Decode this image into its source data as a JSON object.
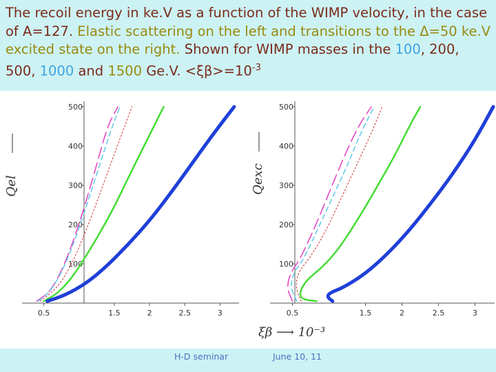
{
  "header": {
    "title_parts": [
      {
        "text": "The recoil energy in ke.V as a function of the WIMP velocity, in the case of A=127. ",
        "cls": ""
      },
      {
        "text": "Elastic scattering on the left and transitions to the",
        "cls": "c-olive"
      },
      {
        "text": " Δ=50 ke.V excited state on the right. ",
        "cls": "c-olive"
      },
      {
        "text": "Shown for  WIMP masses in the ",
        "cls": ""
      },
      {
        "text": "100",
        "cls": "c-lightblue"
      },
      {
        "text": ", 200, 500, ",
        "cls": ""
      },
      {
        "text": "1000",
        "cls": "c-blue2"
      },
      {
        "text": " and ",
        "cls": ""
      },
      {
        "text": "1500",
        "cls": "c-olive"
      },
      {
        "text": " Ge.V. <ξβ>=10",
        "cls": ""
      },
      {
        "text": "-3",
        "cls": "sup"
      }
    ]
  },
  "footer": {
    "left": "H-D seminar",
    "right": "June 10, 11"
  },
  "chart_data": [
    {
      "type": "line",
      "title": "Elastic scattering",
      "ylabel": "Q_{el}",
      "xlabel": "",
      "xlim": [
        0.25,
        3.25
      ],
      "ylim": [
        0,
        500
      ],
      "x_ticks": [
        "0.5",
        "1.5",
        "2",
        "2.5",
        "3"
      ],
      "x_tick_values": [
        0.5,
        1.5,
        2,
        2.5,
        3
      ],
      "y_ticks": [
        "100",
        "200",
        "300",
        "400",
        "500"
      ],
      "y_tick_values": [
        100,
        200,
        300,
        400,
        500
      ],
      "series": [
        {
          "name": "100 GeV",
          "color": "#e040c0",
          "style": "longdash",
          "width": 1.5,
          "xs": [
            0.4,
            0.6,
            0.8,
            1.0,
            1.2,
            1.4,
            1.55
          ],
          "ys": [
            5,
            30,
            100,
            200,
            320,
            450,
            500
          ]
        },
        {
          "name": "200 GeV",
          "color": "#5fc8e8",
          "style": "dash",
          "width": 1.5,
          "xs": [
            0.42,
            0.6,
            0.8,
            1.0,
            1.2,
            1.45,
            1.58
          ],
          "ys": [
            5,
            30,
            95,
            190,
            300,
            440,
            500
          ]
        },
        {
          "name": "500 GeV",
          "color": "#d03030",
          "style": "dot",
          "width": 1,
          "xs": [
            0.45,
            0.7,
            0.9,
            1.1,
            1.3,
            1.5,
            1.75
          ],
          "ys": [
            5,
            40,
            100,
            185,
            280,
            380,
            500
          ]
        },
        {
          "name": "1000 GeV",
          "color": "#44dd33",
          "style": "solid",
          "width": 2.5,
          "xs": [
            0.5,
            0.7,
            0.9,
            1.1,
            1.3,
            1.5,
            1.7,
            1.95,
            2.2
          ],
          "ys": [
            5,
            25,
            65,
            120,
            180,
            245,
            320,
            410,
            500
          ]
        },
        {
          "name": "1500 GeV",
          "color": "#1f3fd8",
          "style": "solid",
          "width": 5,
          "xs": [
            0.55,
            0.8,
            1.1,
            1.4,
            1.7,
            2.0,
            2.3,
            2.6,
            2.9,
            3.2
          ],
          "ys": [
            5,
            20,
            50,
            95,
            150,
            210,
            280,
            355,
            430,
            500
          ]
        }
      ]
    },
    {
      "type": "line",
      "title": "Transitions to the 50 keV excited state",
      "ylabel": "Q_{exc}",
      "xlabel": "ξβ ⟶ 10⁻³",
      "xlim": [
        0.25,
        3.25
      ],
      "ylim": [
        0,
        500
      ],
      "x_ticks": [
        "0.5",
        "1.5",
        "2",
        "2.5",
        "3"
      ],
      "x_tick_values": [
        0.5,
        1.5,
        2,
        2.5,
        3
      ],
      "y_ticks": [
        "100",
        "200",
        "300",
        "400",
        "500"
      ],
      "y_tick_values": [
        100,
        200,
        300,
        400,
        500
      ],
      "series": [
        {
          "name": "100 GeV",
          "color": "#e040c0",
          "style": "longdash",
          "width": 1.5,
          "xs": [
            0.5,
            0.42,
            0.48,
            0.6,
            0.8,
            1.0,
            1.2,
            1.4,
            1.58
          ],
          "ys": [
            5,
            40,
            80,
            110,
            190,
            280,
            370,
            450,
            500
          ]
        },
        {
          "name": "200 GeV",
          "color": "#5fc8e8",
          "style": "dash",
          "width": 1.5,
          "xs": [
            0.56,
            0.47,
            0.52,
            0.65,
            0.85,
            1.05,
            1.25,
            1.45,
            1.62
          ],
          "ys": [
            5,
            40,
            80,
            110,
            190,
            270,
            350,
            440,
            500
          ]
        },
        {
          "name": "500 GeV",
          "color": "#d03030",
          "style": "dot",
          "width": 1,
          "xs": [
            0.62,
            0.54,
            0.58,
            0.72,
            0.95,
            1.15,
            1.35,
            1.55,
            1.73
          ],
          "ys": [
            5,
            40,
            80,
            110,
            180,
            260,
            340,
            420,
            500
          ]
        },
        {
          "name": "1000 GeV",
          "color": "#44dd33",
          "style": "solid",
          "width": 2.5,
          "xs": [
            0.83,
            0.62,
            0.6,
            0.7,
            0.9,
            1.1,
            1.3,
            1.5,
            1.7,
            1.9,
            2.1,
            2.25
          ],
          "ys": [
            5,
            10,
            30,
            60,
            90,
            130,
            185,
            245,
            310,
            375,
            450,
            500
          ]
        },
        {
          "name": "1500 GeV",
          "color": "#1f3fd8",
          "style": "solid",
          "width": 5,
          "xs": [
            1.05,
            0.98,
            1.0,
            1.2,
            1.5,
            1.8,
            2.1,
            2.4,
            2.7,
            3.0,
            3.25
          ],
          "ys": [
            5,
            15,
            25,
            40,
            75,
            125,
            185,
            255,
            330,
            415,
            500
          ]
        }
      ]
    }
  ]
}
